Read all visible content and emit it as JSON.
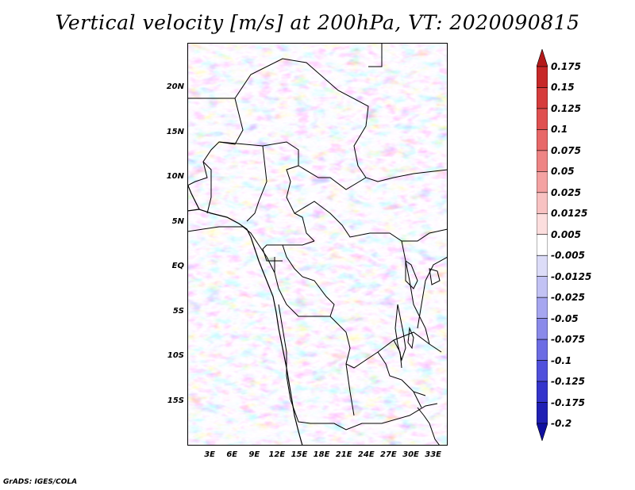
{
  "title": "Vertical velocity [m/s] at 200hPa, VT: 2020090815",
  "credit": "GrADS: IGES/COLA",
  "map": {
    "lon_range": [
      0,
      35
    ],
    "lat_range": [
      -20,
      25
    ],
    "lat_labels": [
      "20N",
      "15N",
      "10N",
      "5N",
      "EQ",
      "5S",
      "10S",
      "15S"
    ],
    "lat_values": [
      20,
      15,
      10,
      5,
      0,
      -5,
      -10,
      -15
    ],
    "lon_labels": [
      "3E",
      "6E",
      "9E",
      "12E",
      "15E",
      "18E",
      "21E",
      "24E",
      "27E",
      "30E",
      "33E"
    ],
    "lon_values": [
      3,
      6,
      9,
      12,
      15,
      18,
      21,
      24,
      27,
      30,
      33
    ]
  },
  "colorbar": {
    "labels": [
      "0.175",
      "0.15",
      "0.125",
      "0.1",
      "0.075",
      "0.05",
      "0.025",
      "0.0125",
      "0.005",
      "-0.005",
      "-0.0125",
      "-0.025",
      "-0.05",
      "-0.075",
      "-0.1",
      "-0.125",
      "-0.175",
      "-0.2"
    ],
    "colors": [
      "#b41a1a",
      "#c72828",
      "#d63c3c",
      "#e05050",
      "#e86868",
      "#ee8484",
      "#f4a2a2",
      "#f8c2c2",
      "#fcdede",
      "#ffffff",
      "#dcdcf8",
      "#c2c2f4",
      "#a6a6f0",
      "#8a8aea",
      "#6c6ce4",
      "#5050dc",
      "#3434cc",
      "#2020b4",
      "#1010a0"
    ]
  }
}
